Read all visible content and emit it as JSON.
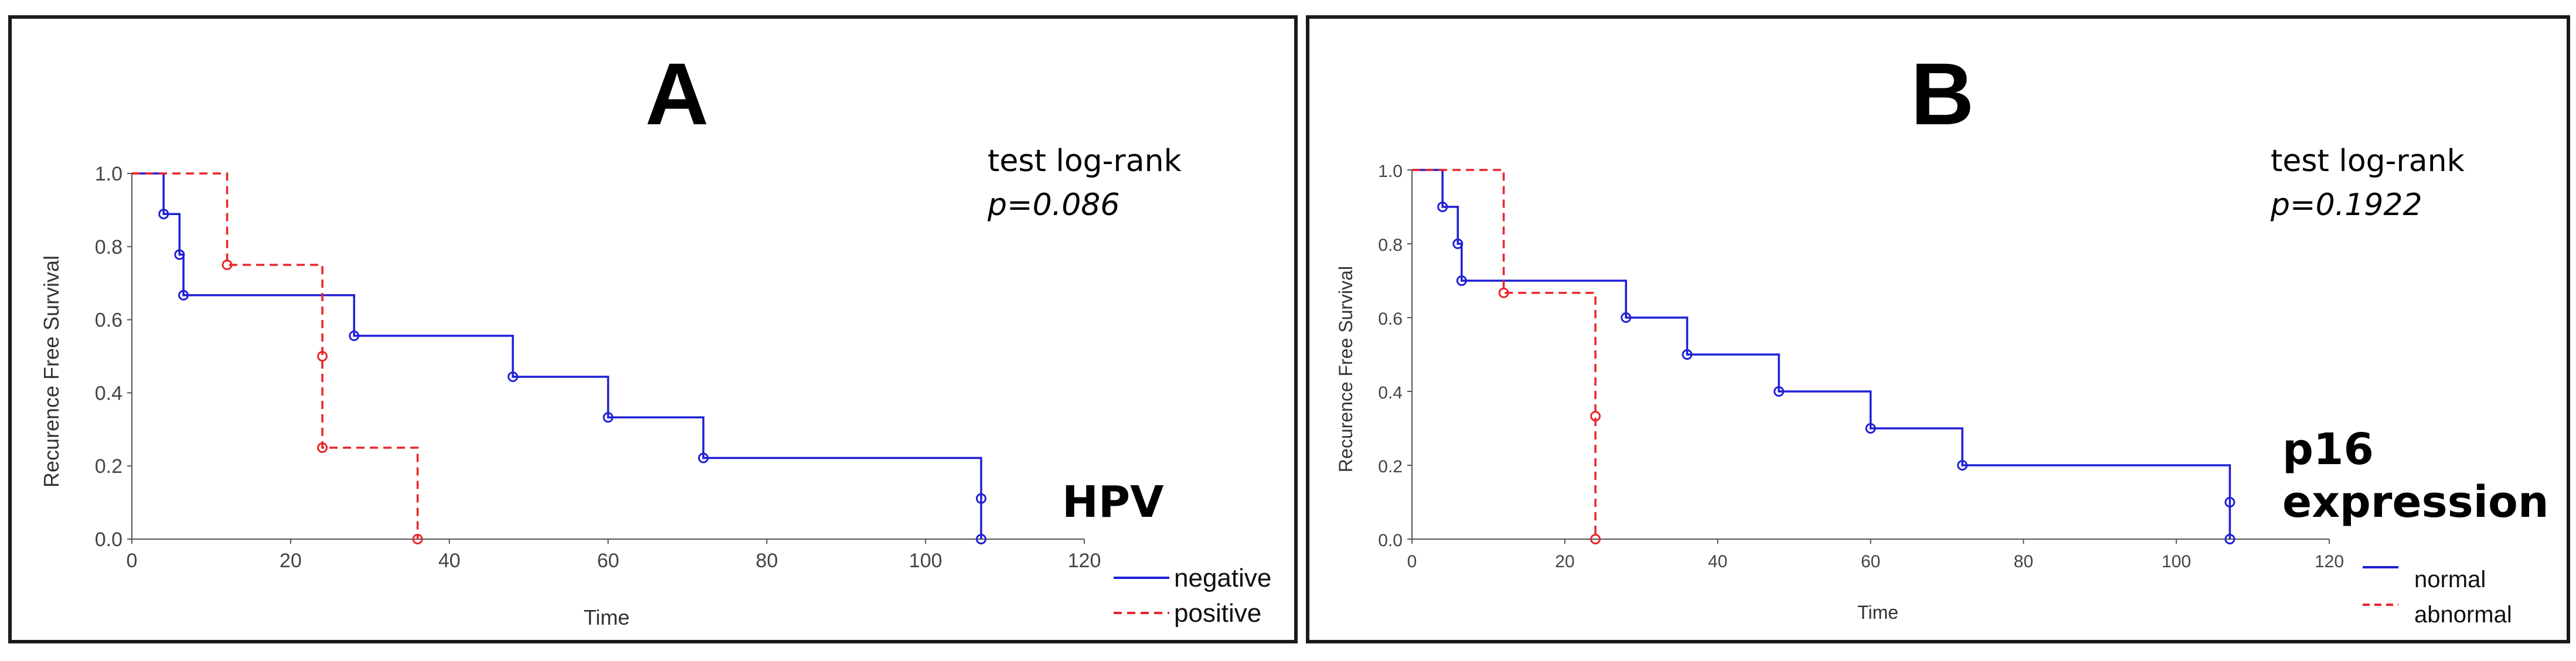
{
  "colors": {
    "negative": "#1f1fd6",
    "positive": "#e8262a",
    "axis": "#555555"
  },
  "chart_data": [
    {
      "type": "line",
      "panel_label": "A",
      "title": "A",
      "xlabel": "Time",
      "ylabel": "Recurence Free Survival",
      "xlim": [
        0,
        120
      ],
      "ylim": [
        0,
        1
      ],
      "x_ticks": [
        "0",
        "20",
        "40",
        "60",
        "80",
        "100",
        "120"
      ],
      "y_ticks": [
        "0.0",
        "0.2",
        "0.4",
        "0.6",
        "0.8",
        "1.0"
      ],
      "test_label": "test log-rank",
      "p_value": "p=0.086",
      "marker_label": "HPV",
      "legend": [
        "negative",
        "positive"
      ],
      "series": [
        {
          "name": "negative",
          "style": "solid",
          "steps": [
            [
              0,
              1.0
            ],
            [
              4,
              0.889
            ],
            [
              6,
              0.778
            ],
            [
              6.5,
              0.667
            ],
            [
              28,
              0.556
            ],
            [
              48,
              0.444
            ],
            [
              60,
              0.333
            ],
            [
              72,
              0.222
            ],
            [
              107,
              0.111
            ],
            [
              107,
              0.0
            ]
          ],
          "censored": [
            [
              4,
              0.889
            ],
            [
              6,
              0.778
            ],
            [
              6.5,
              0.667
            ],
            [
              28,
              0.556
            ],
            [
              48,
              0.444
            ],
            [
              60,
              0.333
            ],
            [
              72,
              0.222
            ],
            [
              107,
              0.111
            ],
            [
              107,
              0.0
            ]
          ]
        },
        {
          "name": "positive",
          "style": "dashed",
          "steps": [
            [
              0,
              1.0
            ],
            [
              12,
              0.75
            ],
            [
              24,
              0.5
            ],
            [
              24,
              0.25
            ],
            [
              36,
              0.0
            ]
          ],
          "censored": [
            [
              12,
              0.75
            ],
            [
              24,
              0.5
            ],
            [
              24,
              0.25
            ],
            [
              36,
              0.0
            ]
          ]
        }
      ]
    },
    {
      "type": "line",
      "panel_label": "B",
      "title": "B",
      "xlabel": "Time",
      "ylabel": "Recurence Free Survival",
      "xlim": [
        0,
        120
      ],
      "ylim": [
        0,
        1
      ],
      "x_ticks": [
        "0",
        "20",
        "40",
        "60",
        "80",
        "100",
        "120"
      ],
      "y_ticks": [
        "0.0",
        "0.2",
        "0.4",
        "0.6",
        "0.8",
        "1.0"
      ],
      "test_label": "test log-rank",
      "p_value": "p=0.1922",
      "marker_label_line1": "p16",
      "marker_label_line2": "expression",
      "legend": [
        "normal",
        "abnormal"
      ],
      "series": [
        {
          "name": "normal",
          "style": "solid",
          "steps": [
            [
              0,
              1.0
            ],
            [
              4,
              0.9
            ],
            [
              6,
              0.8
            ],
            [
              6.5,
              0.7
            ],
            [
              28,
              0.6
            ],
            [
              36,
              0.5
            ],
            [
              48,
              0.4
            ],
            [
              60,
              0.3
            ],
            [
              72,
              0.2
            ],
            [
              107,
              0.1
            ],
            [
              107,
              0.0
            ]
          ],
          "censored": [
            [
              4,
              0.9
            ],
            [
              6,
              0.8
            ],
            [
              6.5,
              0.7
            ],
            [
              28,
              0.6
            ],
            [
              36,
              0.5
            ],
            [
              48,
              0.4
            ],
            [
              60,
              0.3
            ],
            [
              72,
              0.2
            ],
            [
              107,
              0.1
            ],
            [
              107,
              0.0
            ]
          ]
        },
        {
          "name": "abnormal",
          "style": "dashed",
          "steps": [
            [
              0,
              1.0
            ],
            [
              12,
              0.667
            ],
            [
              24,
              0.333
            ],
            [
              24,
              0.0
            ]
          ],
          "censored": [
            [
              12,
              0.667
            ],
            [
              24,
              0.333
            ],
            [
              24,
              0.0
            ]
          ]
        }
      ]
    }
  ]
}
